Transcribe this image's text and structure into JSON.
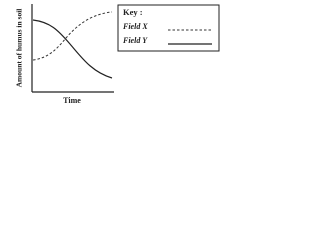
{
  "y_axis_label": "Amount of humus in soil",
  "x_axis_label": "Time",
  "key": {
    "title": "Key :",
    "entries": [
      {
        "label": "Field X",
        "style": "dashed"
      },
      {
        "label": "Field Y",
        "style": "solid"
      }
    ]
  }
}
